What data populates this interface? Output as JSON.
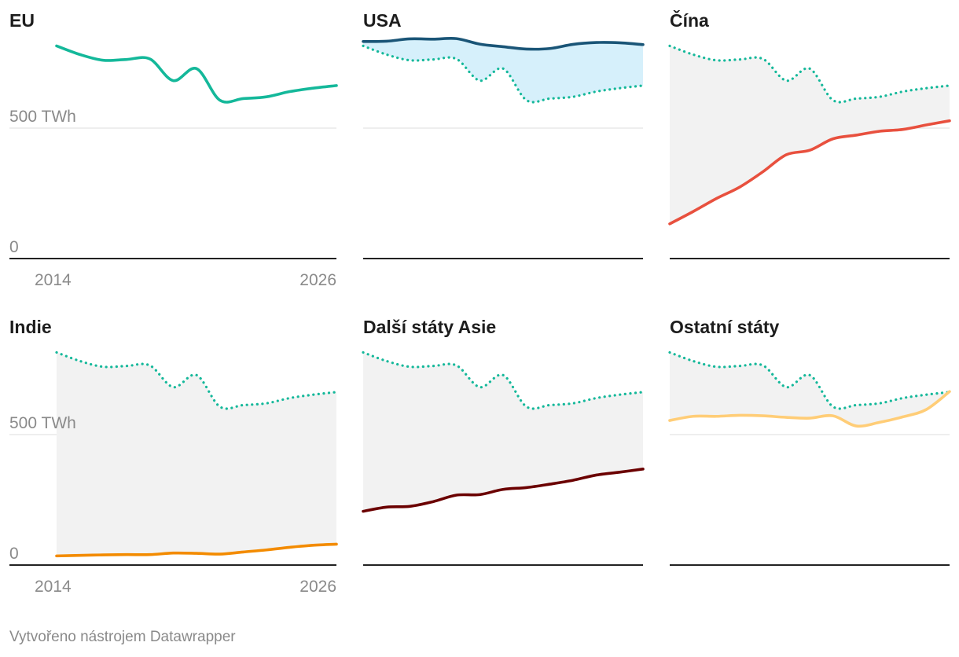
{
  "chart_data": {
    "type": "line",
    "units": "TWh",
    "x_range": [
      2014,
      2026
    ],
    "ylim": [
      0,
      1000
    ],
    "y_ticks": [
      {
        "value": 0,
        "label": "0"
      },
      {
        "value": 500,
        "label": "500 TWh"
      }
    ],
    "x_ticks": [
      {
        "value": 2014,
        "label": "2014"
      },
      {
        "value": 2026,
        "label": "2026"
      }
    ],
    "reference_series": {
      "name": "EU",
      "x": [
        2014,
        2015,
        2016,
        2017,
        2018,
        2019,
        2020,
        2021,
        2022,
        2023,
        2024,
        2025,
        2026
      ],
      "values": [
        815,
        782,
        760,
        763,
        765,
        682,
        728,
        607,
        613,
        620,
        640,
        653,
        663
      ]
    },
    "panels": [
      {
        "title": "EU",
        "color": "#14b89a",
        "show_reference": false,
        "fill": "none",
        "x": [
          2014,
          2015,
          2016,
          2017,
          2018,
          2019,
          2020,
          2021,
          2022,
          2023,
          2024,
          2025,
          2026
        ],
        "values": [
          815,
          782,
          760,
          763,
          765,
          682,
          728,
          607,
          613,
          620,
          640,
          653,
          663
        ]
      },
      {
        "title": "USA",
        "color": "#1a5577",
        "show_reference": true,
        "fill": "#d6f0fb",
        "x": [
          2014,
          2015,
          2016,
          2017,
          2018,
          2019,
          2020,
          2021,
          2022,
          2023,
          2024,
          2025,
          2026
        ],
        "values": [
          832,
          833,
          842,
          841,
          843,
          822,
          812,
          803,
          805,
          821,
          828,
          827,
          820
        ]
      },
      {
        "title": "Čína",
        "color": "#e8503e",
        "show_reference": true,
        "fill": "#f2f2f2",
        "x": [
          2014,
          2015,
          2016,
          2017,
          2018,
          2019,
          2020,
          2021,
          2022,
          2023,
          2024,
          2025,
          2026
        ],
        "values": [
          133,
          180,
          230,
          274,
          333,
          398,
          415,
          459,
          473,
          488,
          495,
          512,
          528
        ]
      },
      {
        "title": "Indie",
        "color": "#f38b00",
        "show_reference": true,
        "fill": "#f2f2f2",
        "x": [
          2014,
          2015,
          2016,
          2017,
          2018,
          2019,
          2020,
          2021,
          2022,
          2023,
          2024,
          2025,
          2026
        ],
        "values": [
          35,
          37,
          39,
          40,
          40,
          46,
          45,
          42,
          50,
          58,
          68,
          76,
          80
        ]
      },
      {
        "title": "Další státy Asie",
        "color": "#6b0000",
        "show_reference": true,
        "fill": "#f2f2f2",
        "x": [
          2014,
          2015,
          2016,
          2017,
          2018,
          2019,
          2020,
          2021,
          2022,
          2023,
          2024,
          2025,
          2026
        ],
        "values": [
          206,
          222,
          225,
          243,
          268,
          270,
          290,
          297,
          310,
          325,
          345,
          356,
          368
        ]
      },
      {
        "title": "Ostatní státy",
        "color": "#ffcd77",
        "show_reference": true,
        "fill": "#f2f2f2",
        "x": [
          2014,
          2015,
          2016,
          2017,
          2018,
          2019,
          2020,
          2021,
          2022,
          2023,
          2024,
          2025,
          2026
        ],
        "values": [
          554,
          570,
          570,
          574,
          572,
          566,
          563,
          572,
          533,
          547,
          568,
          596,
          665
        ]
      }
    ]
  },
  "footer": {
    "credit": "Vytvořeno nástrojem Datawrapper"
  }
}
